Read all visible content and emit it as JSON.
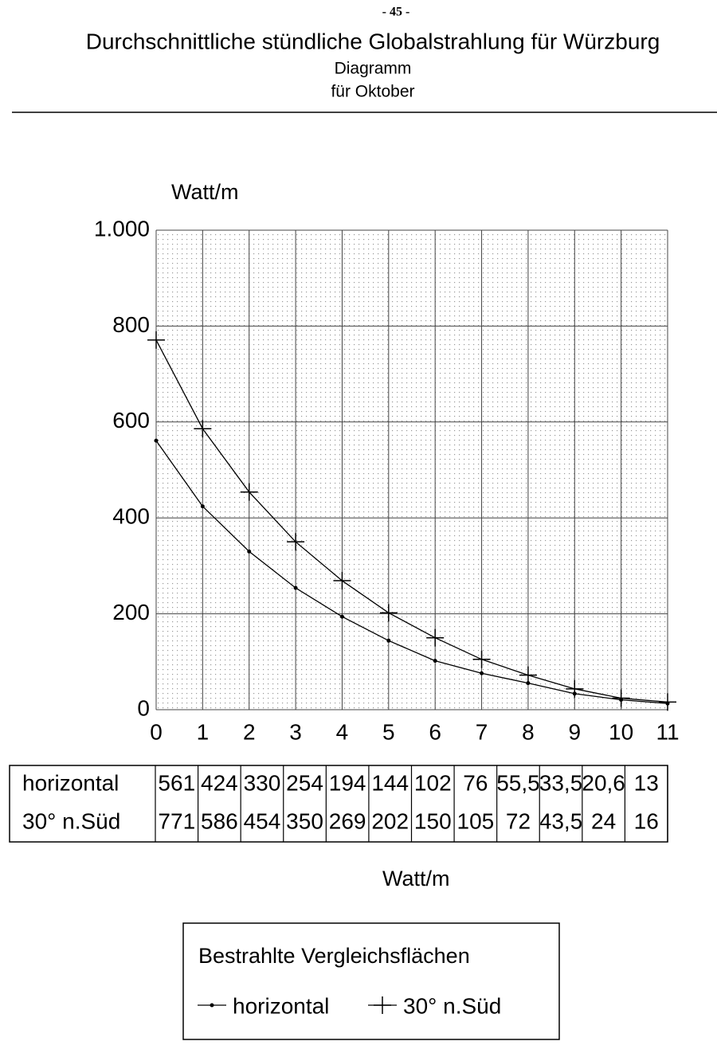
{
  "page_number": "- 45 -",
  "chart_data": {
    "type": "line",
    "title": "Durchschnittliche stündliche Globalstrahlung für Würzburg",
    "subtitle": "Diagramm",
    "subtitle2": "für Oktober",
    "y_label": "Watt/m",
    "x_label": "Watt/m",
    "x": [
      0,
      1,
      2,
      3,
      4,
      5,
      6,
      7,
      8,
      9,
      10,
      11
    ],
    "xlim": [
      0,
      11
    ],
    "xticks": [
      0,
      1,
      2,
      3,
      4,
      5,
      6,
      7,
      8,
      9,
      10,
      11
    ],
    "ylim": [
      0,
      1000
    ],
    "yticks": [
      0,
      200,
      400,
      600,
      800,
      {
        "value": 1000,
        "label": "1.000"
      }
    ],
    "grid": true,
    "legend_title": "Bestrahlte Vergleichsflächen",
    "series": [
      {
        "name": "horizontal",
        "color": "#000000",
        "marker": "dot",
        "values": [
          561,
          424,
          330,
          254,
          194,
          144,
          102,
          76,
          55.5,
          33.5,
          20.6,
          13
        ],
        "value_labels": [
          "561",
          "424",
          "330",
          "254",
          "194",
          "144",
          "102",
          "76",
          "55,5",
          "33,5",
          "20,6",
          "13"
        ]
      },
      {
        "name": "30° n.Süd",
        "color": "#000000",
        "marker": "cross",
        "values": [
          771,
          586,
          454,
          350,
          269,
          202,
          150,
          105,
          72,
          43.5,
          24,
          16
        ],
        "value_labels": [
          "771",
          "586",
          "454",
          "350",
          "269",
          "202",
          "150",
          "105",
          "72",
          "43,5",
          "24",
          "16"
        ]
      }
    ]
  }
}
